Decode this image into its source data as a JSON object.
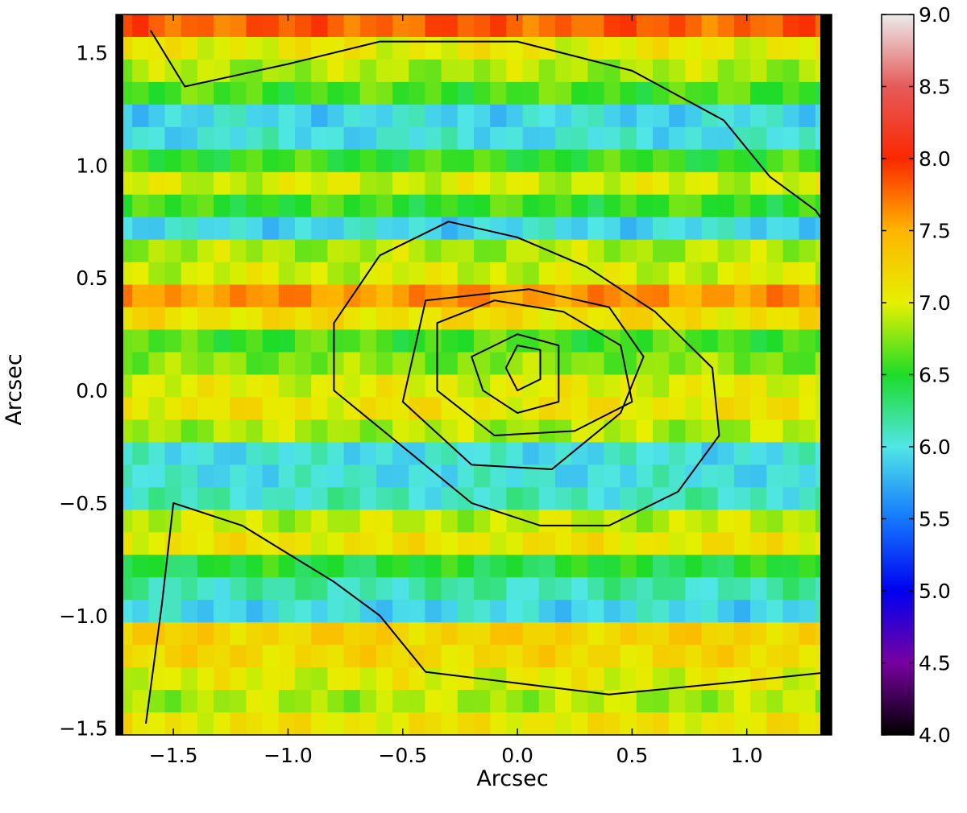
{
  "chart_data": {
    "type": "heatmap",
    "title": "",
    "xlabel": "Arcsec",
    "ylabel": "Arcsec",
    "xlim": [
      -1.75,
      1.37
    ],
    "ylim": [
      -1.53,
      1.67
    ],
    "x_ticks": [
      -1.5,
      -1.0,
      -0.5,
      0.0,
      0.5,
      1.0
    ],
    "x_tick_labels": [
      "−1.5",
      "−1.0",
      "−0.5",
      "0.0",
      "0.5",
      "1.0"
    ],
    "y_ticks": [
      -1.5,
      -1.0,
      -0.5,
      0.0,
      0.5,
      1.0,
      1.5
    ],
    "y_tick_labels": [
      "−1.5",
      "−1.0",
      "−0.5",
      "0.0",
      "0.5",
      "1.0",
      "1.5"
    ],
    "grid": false,
    "colormap": "spectral",
    "colorbar": {
      "range": [
        4.0,
        9.0
      ],
      "ticks": [
        4.0,
        4.5,
        5.0,
        5.5,
        6.0,
        6.5,
        7.0,
        7.5,
        8.0,
        8.5,
        9.0
      ],
      "tick_labels": [
        "4.0",
        "4.5",
        "5.0",
        "5.5",
        "6.0",
        "6.5",
        "7.0",
        "7.5",
        "8.0",
        "8.5",
        "9.0"
      ]
    },
    "row_band_values": [
      {
        "y_range": [
          1.57,
          1.67
        ],
        "value": 7.8
      },
      {
        "y_range": [
          1.47,
          1.57
        ],
        "value": 7.05
      },
      {
        "y_range": [
          1.37,
          1.47
        ],
        "value": 6.85
      },
      {
        "y_range": [
          1.27,
          1.37
        ],
        "value": 6.6
      },
      {
        "y_range": [
          1.17,
          1.27
        ],
        "value": 5.95
      },
      {
        "y_range": [
          1.07,
          1.17
        ],
        "value": 6.0
      },
      {
        "y_range": [
          0.97,
          1.07
        ],
        "value": 6.55
      },
      {
        "y_range": [
          0.87,
          0.97
        ],
        "value": 6.95
      },
      {
        "y_range": [
          0.77,
          0.87
        ],
        "value": 6.55
      },
      {
        "y_range": [
          0.67,
          0.77
        ],
        "value": 5.95
      },
      {
        "y_range": [
          0.57,
          0.67
        ],
        "value": 6.85
      },
      {
        "y_range": [
          0.47,
          0.57
        ],
        "value": 6.95
      },
      {
        "y_range": [
          0.37,
          0.47
        ],
        "value": 7.6
      },
      {
        "y_range": [
          0.27,
          0.37
        ],
        "value": 7.15
      },
      {
        "y_range": [
          0.17,
          0.27
        ],
        "value": 6.6
      },
      {
        "y_range": [
          0.07,
          0.17
        ],
        "value": 6.75
      },
      {
        "y_range": [
          -0.03,
          0.07
        ],
        "value": 7.0
      },
      {
        "y_range": [
          -0.13,
          -0.03
        ],
        "value": 7.1
      },
      {
        "y_range": [
          -0.23,
          -0.13
        ],
        "value": 6.85
      },
      {
        "y_range": [
          -0.33,
          -0.23
        ],
        "value": 6.0
      },
      {
        "y_range": [
          -0.43,
          -0.33
        ],
        "value": 6.0
      },
      {
        "y_range": [
          -0.53,
          -0.43
        ],
        "value": 6.1
      },
      {
        "y_range": [
          -0.63,
          -0.53
        ],
        "value": 6.9
      },
      {
        "y_range": [
          -0.73,
          -0.63
        ],
        "value": 7.1
      },
      {
        "y_range": [
          -0.83,
          -0.73
        ],
        "value": 6.45
      },
      {
        "y_range": [
          -0.93,
          -0.83
        ],
        "value": 6.15
      },
      {
        "y_range": [
          -1.03,
          -0.93
        ],
        "value": 5.95
      },
      {
        "y_range": [
          -1.13,
          -1.03
        ],
        "value": 7.25
      },
      {
        "y_range": [
          -1.23,
          -1.13
        ],
        "value": 7.2
      },
      {
        "y_range": [
          -1.33,
          -1.23
        ],
        "value": 7.0
      },
      {
        "y_range": [
          -1.43,
          -1.33
        ],
        "value": 6.85
      },
      {
        "y_range": [
          -1.53,
          -1.43
        ],
        "value": 7.1
      }
    ],
    "contours": [
      {
        "level": 1,
        "points": [
          [
            0.0,
            0.0
          ],
          [
            0.1,
            0.05
          ],
          [
            0.1,
            0.18
          ],
          [
            0.0,
            0.2
          ],
          [
            -0.05,
            0.1
          ]
        ]
      },
      {
        "level": 2,
        "points": [
          [
            -0.15,
            0.0
          ],
          [
            0.0,
            -0.1
          ],
          [
            0.18,
            -0.05
          ],
          [
            0.18,
            0.2
          ],
          [
            0.0,
            0.25
          ],
          [
            -0.2,
            0.15
          ]
        ]
      },
      {
        "level": 3,
        "points": [
          [
            -0.35,
            0.0
          ],
          [
            -0.1,
            -0.2
          ],
          [
            0.25,
            -0.18
          ],
          [
            0.5,
            -0.05
          ],
          [
            0.45,
            0.2
          ],
          [
            0.2,
            0.35
          ],
          [
            -0.1,
            0.4
          ],
          [
            -0.35,
            0.3
          ]
        ]
      },
      {
        "level": 4,
        "points": [
          [
            -0.5,
            -0.05
          ],
          [
            -0.2,
            -0.33
          ],
          [
            0.15,
            -0.35
          ],
          [
            0.45,
            -0.1
          ],
          [
            0.55,
            0.15
          ],
          [
            0.4,
            0.37
          ],
          [
            0.05,
            0.45
          ],
          [
            -0.4,
            0.4
          ]
        ]
      },
      {
        "level": 5,
        "points": [
          [
            -0.8,
            0.0
          ],
          [
            -0.5,
            -0.25
          ],
          [
            -0.2,
            -0.5
          ],
          [
            0.1,
            -0.6
          ],
          [
            0.4,
            -0.6
          ],
          [
            0.7,
            -0.45
          ],
          [
            0.88,
            -0.2
          ],
          [
            0.85,
            0.1
          ],
          [
            0.6,
            0.35
          ],
          [
            0.3,
            0.55
          ],
          [
            0.0,
            0.68
          ],
          [
            -0.3,
            0.75
          ],
          [
            -0.6,
            0.6
          ],
          [
            -0.8,
            0.3
          ]
        ]
      },
      {
        "level": 6,
        "points": [
          [
            -1.6,
            1.6
          ],
          [
            -1.45,
            1.35
          ],
          [
            -1.0,
            1.45
          ],
          [
            -0.6,
            1.55
          ],
          [
            0.0,
            1.55
          ],
          [
            0.5,
            1.42
          ],
          [
            0.9,
            1.2
          ],
          [
            1.1,
            0.95
          ],
          [
            1.3,
            0.8
          ],
          [
            1.37,
            0.7
          ]
        ]
      },
      {
        "level": 7,
        "points": [
          [
            -1.62,
            -1.48
          ],
          [
            -1.55,
            -0.95
          ],
          [
            -1.5,
            -0.5
          ],
          [
            -1.2,
            -0.6
          ],
          [
            -0.8,
            -0.85
          ],
          [
            -0.6,
            -1.0
          ],
          [
            -0.4,
            -1.25
          ],
          [
            0.0,
            -1.3
          ],
          [
            0.4,
            -1.35
          ],
          [
            0.9,
            -1.3
          ],
          [
            1.37,
            -1.25
          ]
        ]
      }
    ]
  }
}
